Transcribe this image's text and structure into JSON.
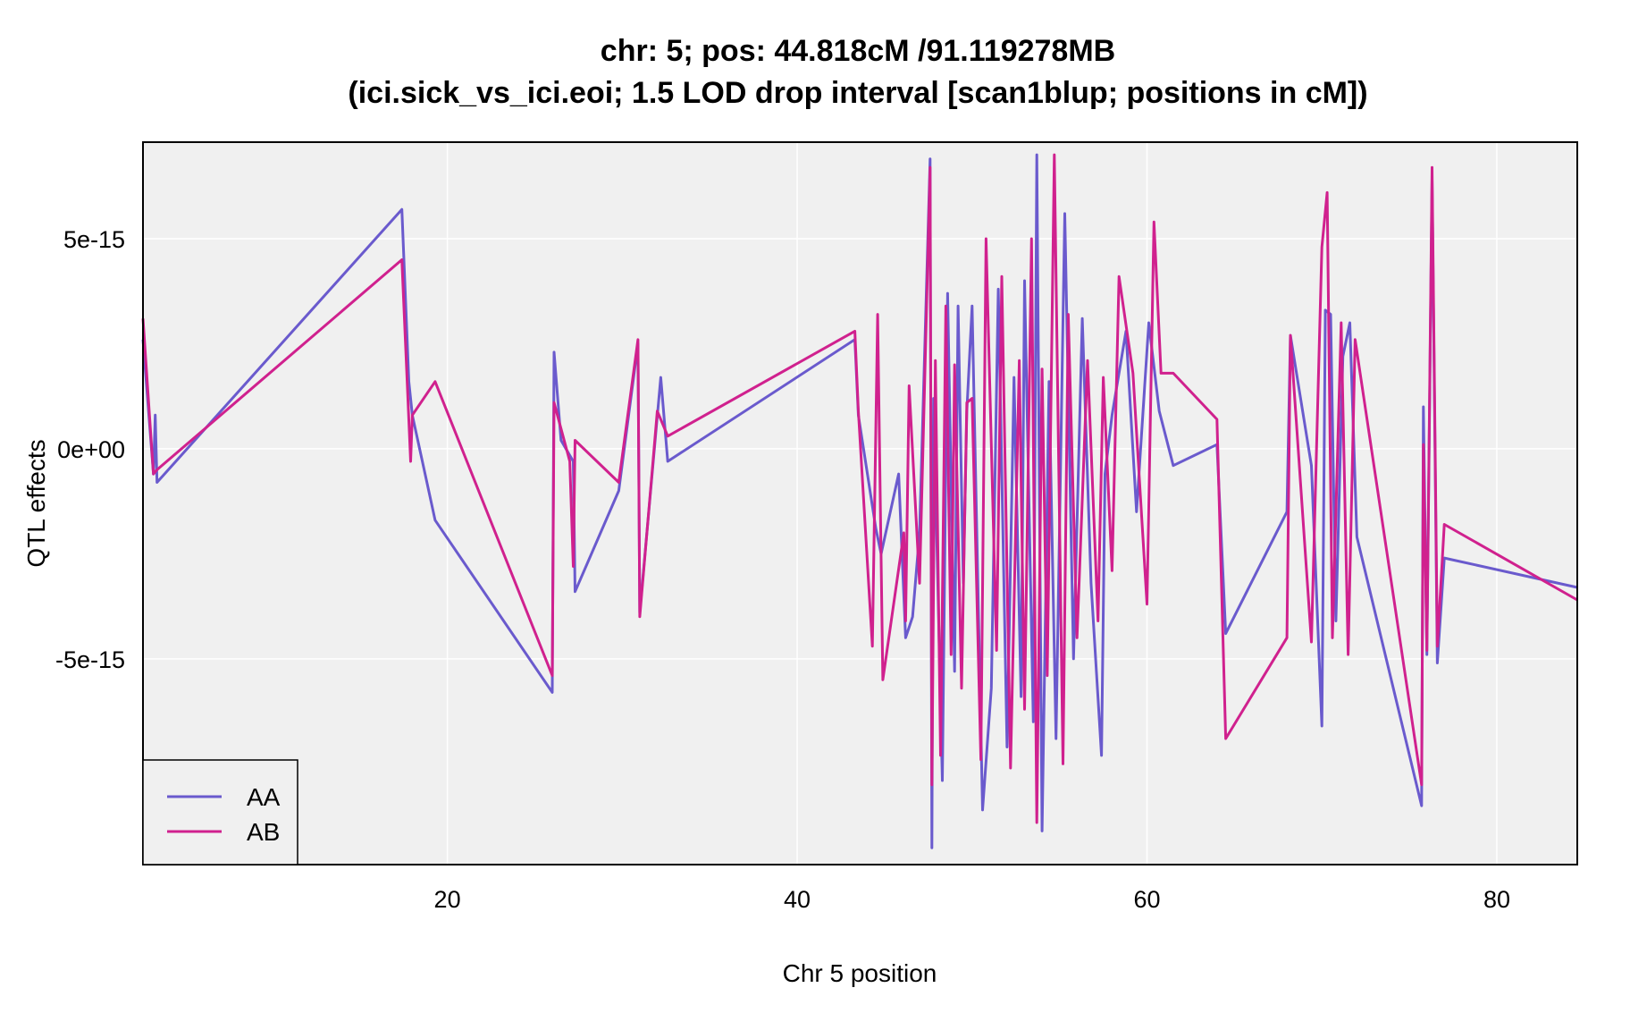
{
  "chart_data": {
    "type": "line",
    "title": "chr: 5; pos: 44.818cM /91.119278MB",
    "subtitle": "(ici.sick_vs_ici.eoi; 1.5 LOD drop interval [scan1blup; positions in cM])",
    "xlabel": "Chr 5 position",
    "ylabel": "QTL effects",
    "xlim": [
      2.6,
      84.6
    ],
    "ylim": [
      -9.9e-15,
      7.3e-15
    ],
    "xticks": [
      20,
      40,
      60,
      80
    ],
    "xtick_labels": [
      "20",
      "40",
      "60",
      "80"
    ],
    "yticks": [
      5e-15,
      0,
      -5e-15
    ],
    "ytick_labels": [
      "5e-15",
      "0e+00",
      "-5e-15"
    ],
    "grid": true,
    "legend_position": "bottom-left",
    "series": [
      {
        "name": "AA",
        "color": "#6a5acd",
        "x": [
          2.6,
          3.2,
          3.3,
          3.4,
          17.4,
          17.8,
          18.0,
          19.3,
          26.0,
          26.1,
          26.5,
          27.2,
          27.3,
          29.8,
          30.9,
          31.0,
          32.2,
          32.6,
          43.3,
          43.5,
          44.5,
          44.8,
          45.8,
          46.2,
          46.6,
          47.0,
          47.6,
          47.7,
          47.8,
          48.3,
          48.6,
          49.0,
          49.2,
          49.5,
          49.7,
          50.0,
          50.6,
          51.1,
          51.5,
          52.0,
          52.4,
          52.8,
          53.0,
          53.5,
          53.7,
          54.0,
          54.4,
          54.8,
          55.3,
          55.8,
          56.3,
          56.8,
          57.4,
          57.6,
          58.0,
          58.8,
          59.4,
          60.1,
          60.7,
          61.5,
          64.0,
          64.5,
          68.0,
          68.2,
          69.4,
          70.0,
          70.2,
          70.5,
          70.8,
          71.2,
          71.6,
          72.0,
          75.7,
          75.8,
          76.0,
          76.3,
          76.6,
          77.0,
          84.6
        ],
        "y": [
          2.6e-15,
          -6e-16,
          8e-16,
          -8e-16,
          5.7e-15,
          1.6e-15,
          8e-16,
          -1.7e-15,
          -5.8e-15,
          2.3e-15,
          2e-16,
          -3e-16,
          -3.4e-15,
          -1e-15,
          2.5e-15,
          -3.9e-15,
          1.7e-15,
          -3e-16,
          2.6e-15,
          8e-16,
          -1.9e-15,
          -2.5e-15,
          -6e-16,
          -4.5e-15,
          -4e-15,
          -2e-15,
          6.9e-15,
          -9.5e-15,
          1.2e-15,
          -7.9e-15,
          3.7e-15,
          -5.3e-15,
          3.4e-15,
          -3.2e-15,
          9e-16,
          3.4e-15,
          -8.6e-15,
          -5.7e-15,
          3.8e-15,
          -7.1e-15,
          1.7e-15,
          -5.9e-15,
          4e-15,
          -6.5e-15,
          7e-15,
          -9.1e-15,
          1.6e-15,
          -6.9e-15,
          5.6e-15,
          -5e-15,
          3.1e-15,
          -3.2e-15,
          -7.3e-15,
          -6e-16,
          8e-16,
          2.8e-15,
          -1.5e-15,
          3e-15,
          9e-16,
          -4e-16,
          1e-16,
          -4.4e-15,
          -1.5e-15,
          2.7e-15,
          -4e-16,
          -6.6e-15,
          3.3e-15,
          3.2e-15,
          -4.1e-15,
          2.2e-15,
          3e-15,
          -2.1e-15,
          -8.5e-15,
          1e-15,
          -4.9e-15,
          6.4e-15,
          -5.1e-15,
          -2.6e-15,
          -3.3e-15
        ]
      },
      {
        "name": "AB",
        "color": "#d0218e",
        "x": [
          2.6,
          3.2,
          3.4,
          17.4,
          17.9,
          18.0,
          19.3,
          26.0,
          26.1,
          27.0,
          27.2,
          27.3,
          29.8,
          30.9,
          31.0,
          32.0,
          32.6,
          43.3,
          43.5,
          44.3,
          44.6,
          44.9,
          46.1,
          46.2,
          46.4,
          47.0,
          47.6,
          47.7,
          47.9,
          48.2,
          48.5,
          48.8,
          49.0,
          49.4,
          49.7,
          50.0,
          50.5,
          50.8,
          51.4,
          51.7,
          52.2,
          52.7,
          53.0,
          53.4,
          53.7,
          54.0,
          54.3,
          54.7,
          55.2,
          55.5,
          56.0,
          56.6,
          57.2,
          57.5,
          58.0,
          58.4,
          59.2,
          60.0,
          60.4,
          60.8,
          61.5,
          64.0,
          64.5,
          68.0,
          68.2,
          69.4,
          70.0,
          70.3,
          70.6,
          71.1,
          71.5,
          71.9,
          75.7,
          75.8,
          76.0,
          76.3,
          76.6,
          77.0,
          84.6
        ],
        "y": [
          3.1e-15,
          -6e-16,
          -5e-16,
          4.5e-15,
          -3e-16,
          8e-16,
          1.6e-15,
          -5.4e-15,
          1.1e-15,
          -3e-16,
          -2.8e-15,
          2e-16,
          -8e-16,
          2.6e-15,
          -4e-15,
          9e-16,
          3e-16,
          2.8e-15,
          9e-16,
          -4.7e-15,
          3.2e-15,
          -5.5e-15,
          -2e-15,
          -4.1e-15,
          1.5e-15,
          -3.2e-15,
          6.7e-15,
          -8e-15,
          2.1e-15,
          -7.3e-15,
          3.4e-15,
          -4.9e-15,
          2e-15,
          -5.7e-15,
          1.1e-15,
          1.2e-15,
          -7.4e-15,
          5e-15,
          -4.8e-15,
          4.1e-15,
          -7.6e-15,
          2.1e-15,
          -6.2e-15,
          5e-15,
          -8.9e-15,
          1.9e-15,
          -5.4e-15,
          7e-15,
          -7.5e-15,
          3.2e-15,
          -4.5e-15,
          2.1e-15,
          -4.1e-15,
          1.7e-15,
          -2.9e-15,
          4.1e-15,
          1.8e-15,
          -3.7e-15,
          5.4e-15,
          1.8e-15,
          1.8e-15,
          7e-16,
          -6.9e-15,
          -4.5e-15,
          2.7e-15,
          -4.6e-15,
          4.8e-15,
          6.1e-15,
          -4.5e-15,
          3e-15,
          -4.9e-15,
          2.6e-15,
          -8e-15,
          1e-16,
          -4.8e-15,
          6.7e-15,
          -4.7e-15,
          -1.8e-15,
          -3.6e-15
        ]
      }
    ]
  }
}
